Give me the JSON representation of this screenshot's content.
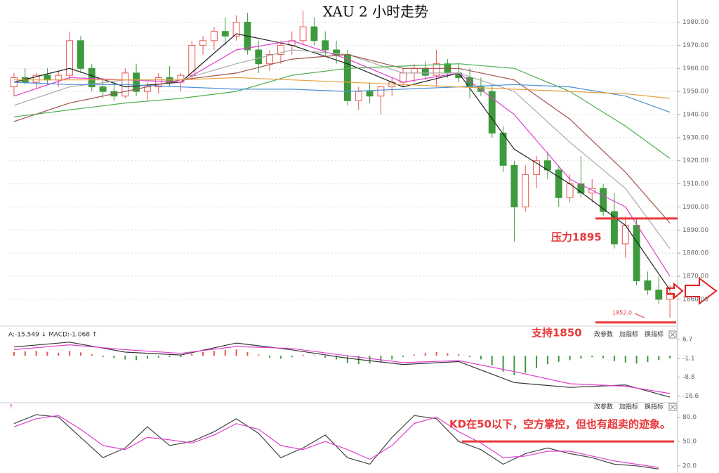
{
  "chart_data": [
    {
      "type": "candlestick",
      "title": "XAU 2 小时走势",
      "ylim": [
        1849,
        1989
      ],
      "yticks": [
        {
          "value": 1860,
          "label": "1860.00"
        },
        {
          "value": 1870,
          "label": "1870.00"
        },
        {
          "value": 1880,
          "label": "1880.00"
        },
        {
          "value": 1890,
          "label": "1890.00"
        },
        {
          "value": 1900,
          "label": "1900.00"
        },
        {
          "value": 1910,
          "label": "1910.00"
        },
        {
          "value": 1920,
          "label": "1920.00"
        },
        {
          "value": 1930,
          "label": "1930.00"
        },
        {
          "value": 1940,
          "label": "1940.00"
        },
        {
          "value": 1950,
          "label": "1950.00"
        },
        {
          "value": 1960,
          "label": "1960.00"
        },
        {
          "value": 1970,
          "label": "1970.00"
        },
        {
          "value": 1980,
          "label": "1980.00"
        }
      ],
      "grid": true,
      "up_color": "#e8554e",
      "down_color": "#3d9a3d",
      "ohlc": [
        [
          1952,
          1958,
          1948,
          1956
        ],
        [
          1956,
          1960,
          1953,
          1954
        ],
        [
          1954,
          1958,
          1951,
          1957
        ],
        [
          1957,
          1960,
          1953,
          1955
        ],
        [
          1955,
          1959,
          1952,
          1957
        ],
        [
          1957,
          1976,
          1955,
          1972
        ],
        [
          1972,
          1974,
          1958,
          1960
        ],
        [
          1960,
          1962,
          1950,
          1952
        ],
        [
          1952,
          1956,
          1947,
          1950
        ],
        [
          1950,
          1954,
          1946,
          1948
        ],
        [
          1948,
          1960,
          1947,
          1958
        ],
        [
          1958,
          1962,
          1948,
          1950
        ],
        [
          1950,
          1954,
          1946,
          1952
        ],
        [
          1952,
          1958,
          1949,
          1956
        ],
        [
          1956,
          1961,
          1952,
          1954
        ],
        [
          1954,
          1958,
          1950,
          1957
        ],
        [
          1957,
          1972,
          1955,
          1970
        ],
        [
          1970,
          1974,
          1966,
          1972
        ],
        [
          1972,
          1978,
          1968,
          1976
        ],
        [
          1976,
          1982,
          1970,
          1974
        ],
        [
          1974,
          1983,
          1972,
          1980
        ],
        [
          1980,
          1984,
          1966,
          1968
        ],
        [
          1968,
          1972,
          1958,
          1962
        ],
        [
          1962,
          1968,
          1959,
          1966
        ],
        [
          1966,
          1972,
          1962,
          1970
        ],
        [
          1970,
          1976,
          1966,
          1972
        ],
        [
          1972,
          1985,
          1970,
          1978
        ],
        [
          1978,
          1982,
          1970,
          1972
        ],
        [
          1972,
          1976,
          1965,
          1968
        ],
        [
          1968,
          1972,
          1962,
          1966
        ],
        [
          1966,
          1968,
          1944,
          1946
        ],
        [
          1946,
          1952,
          1942,
          1950
        ],
        [
          1950,
          1954,
          1945,
          1948
        ],
        [
          1948,
          1952,
          1940,
          1952
        ],
        [
          1952,
          1956,
          1948,
          1954
        ],
        [
          1954,
          1960,
          1952,
          1958
        ],
        [
          1958,
          1962,
          1954,
          1960
        ],
        [
          1960,
          1963,
          1955,
          1957
        ],
        [
          1957,
          1968,
          1952,
          1962
        ],
        [
          1962,
          1964,
          1956,
          1958
        ],
        [
          1958,
          1962,
          1954,
          1956
        ],
        [
          1956,
          1960,
          1947,
          1952
        ],
        [
          1952,
          1956,
          1948,
          1950
        ],
        [
          1950,
          1953,
          1930,
          1932
        ],
        [
          1932,
          1935,
          1915,
          1918
        ],
        [
          1918,
          1920,
          1885,
          1900
        ],
        [
          1900,
          1918,
          1898,
          1914
        ],
        [
          1914,
          1922,
          1908,
          1920
        ],
        [
          1920,
          1924,
          1912,
          1916
        ],
        [
          1916,
          1918,
          1900,
          1904
        ],
        [
          1904,
          1914,
          1902,
          1910
        ],
        [
          1910,
          1922,
          1904,
          1906
        ],
        [
          1906,
          1912,
          1902,
          1908
        ],
        [
          1908,
          1910,
          1896,
          1898
        ],
        [
          1898,
          1906,
          1882,
          1884
        ],
        [
          1884,
          1896,
          1878,
          1892
        ],
        [
          1892,
          1895,
          1866,
          1868
        ],
        [
          1868,
          1872,
          1862,
          1864
        ],
        [
          1864,
          1870,
          1858,
          1860
        ],
        [
          1860,
          1866,
          1852,
          1862
        ]
      ],
      "line_x": [
        0,
        5,
        10,
        15,
        20,
        25,
        30,
        35,
        40,
        45,
        50,
        55,
        59
      ],
      "series": [
        {
          "color": "#222222",
          "values": [
            1954,
            1960,
            1952,
            1954,
            1975,
            1970,
            1962,
            1952,
            1958,
            1925,
            1910,
            1892,
            1864
          ]
        },
        {
          "color": "#e040d0",
          "values": [
            1948,
            1956,
            1955,
            1954,
            1968,
            1972,
            1964,
            1954,
            1958,
            1940,
            1912,
            1900,
            1870
          ]
        },
        {
          "color": "#aaaaaa",
          "values": [
            1944,
            1952,
            1955,
            1955,
            1962,
            1968,
            1966,
            1958,
            1958,
            1950,
            1928,
            1908,
            1882
          ]
        },
        {
          "color": "#a0524a",
          "values": [
            1937,
            1945,
            1950,
            1955,
            1958,
            1964,
            1966,
            1960,
            1960,
            1955,
            1938,
            1915,
            1893
          ]
        },
        {
          "color": "#4caf50",
          "values": [
            1939,
            1942,
            1945,
            1947,
            1950,
            1957,
            1960,
            1961,
            1962,
            1960,
            1950,
            1935,
            1921
          ]
        },
        {
          "color": "#4a90d9",
          "values": [
            1954,
            1953,
            1953,
            1952,
            1951,
            1951,
            1950,
            1951,
            1952,
            1953,
            1952,
            1948,
            1941
          ]
        },
        {
          "color": "#e8a040",
          "values": [
            1955,
            1955,
            1955,
            1955,
            1956,
            1955,
            1954,
            1953,
            1952,
            1951,
            1950,
            1949,
            1947
          ]
        }
      ],
      "annotations": [
        {
          "text": "压力1895",
          "value": 1895
        },
        {
          "text": "支持1850",
          "value": 1850
        }
      ],
      "low_label": {
        "value": 1852,
        "label": "1852.0"
      }
    },
    {
      "type": "macd",
      "header": "A:-15.549 ↓ MACD:-1.068 ↑",
      "ylim": [
        -19,
        11.3
      ],
      "yticks": [
        6.7,
        -1.1,
        -8.8,
        -16.6
      ],
      "buttons": [
        "改参数",
        "加指标",
        "换指标"
      ],
      "up_color": "#e8554e",
      "down_color": "#3d9a3d",
      "line_x": [
        0,
        5,
        10,
        15,
        20,
        25,
        30,
        35,
        40,
        45,
        50,
        55,
        59
      ],
      "series": [
        {
          "color": "#333333",
          "values": [
            3.6,
            5.6,
            1.5,
            0.3,
            5.2,
            2.4,
            -1.0,
            -3.6,
            -2.4,
            -11.0,
            -13.0,
            -12.0,
            -17.0
          ]
        },
        {
          "color": "#e040d0",
          "values": [
            2.5,
            4.5,
            2.5,
            1.0,
            3.8,
            3.0,
            0.0,
            -2.8,
            -2.0,
            -6.5,
            -11.5,
            -12.5,
            -15.5
          ]
        }
      ],
      "histogram": [
        1.5,
        1.8,
        2.0,
        1.6,
        1.2,
        2.0,
        1.4,
        0.6,
        -0.5,
        -1.0,
        -1.5,
        -1.8,
        -1.2,
        -0.8,
        -0.5,
        -0.6,
        0.8,
        1.5,
        2.0,
        2.4,
        2.6,
        1.5,
        0.5,
        -0.8,
        -1.2,
        -0.6,
        0.4,
        0.2,
        -0.8,
        -1.5,
        -3.0,
        -3.5,
        -3.2,
        -2.5,
        -1.5,
        -0.5,
        0.5,
        1.2,
        1.5,
        1.0,
        0.6,
        -0.5,
        -1.5,
        -4.0,
        -6.5,
        -8.0,
        -7.0,
        -5.0,
        -3.5,
        -2.5,
        -1.8,
        -1.2,
        -0.6,
        -1.0,
        -2.2,
        -2.8,
        -3.2,
        -2.6,
        -1.8,
        -1.0
      ]
    },
    {
      "type": "kd",
      "header": "↑",
      "ylim": [
        12,
        96
      ],
      "yticks": [
        {
          "value": 80,
          "label": "80.0"
        },
        {
          "value": 50,
          "label": "50.0"
        },
        {
          "value": 20,
          "label": "20.0"
        }
      ],
      "buttons": [
        "改参数",
        "加指标",
        "换指标"
      ],
      "line_x": [
        0,
        2,
        4,
        6,
        8,
        10,
        12,
        14,
        16,
        18,
        20,
        22,
        24,
        26,
        28,
        30,
        32,
        34,
        36,
        38,
        40,
        42,
        44,
        46,
        48,
        50,
        52,
        54,
        56,
        58
      ],
      "series": [
        {
          "color": "#444444",
          "values": [
            72,
            83,
            80,
            55,
            30,
            42,
            68,
            45,
            50,
            62,
            78,
            60,
            30,
            42,
            58,
            30,
            22,
            55,
            82,
            78,
            50,
            40,
            22,
            35,
            42,
            35,
            30,
            22,
            20,
            16
          ]
        },
        {
          "color": "#e040d0",
          "values": [
            68,
            78,
            82,
            65,
            45,
            40,
            55,
            52,
            48,
            58,
            72,
            65,
            45,
            40,
            50,
            40,
            28,
            45,
            72,
            80,
            62,
            48,
            30,
            32,
            38,
            38,
            32,
            26,
            22,
            18
          ]
        }
      ],
      "annotations": [
        {
          "text": "KD在50以下，空方掌控，但也有超卖的迹象。",
          "value": 50
        }
      ]
    }
  ]
}
